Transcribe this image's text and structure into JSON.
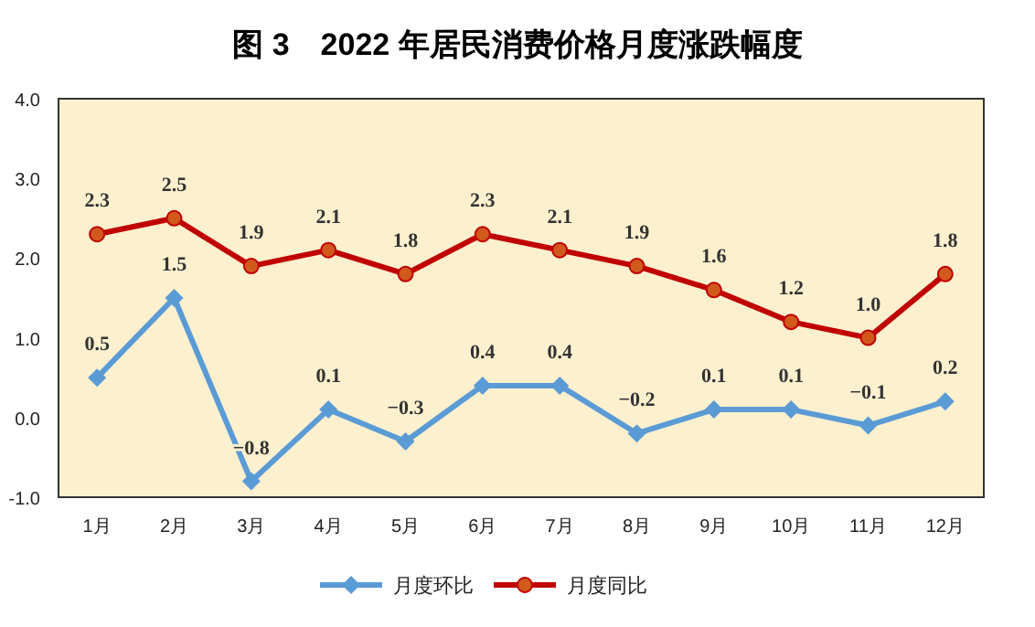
{
  "chart_data": {
    "type": "line",
    "title": "图 3　2022 年居民消费价格月度涨跌幅度",
    "categories": [
      "1月",
      "2月",
      "3月",
      "4月",
      "5月",
      "6月",
      "7月",
      "8月",
      "9月",
      "10月",
      "11月",
      "12月"
    ],
    "series": [
      {
        "name": "月度环比",
        "color": "#5b9bd5",
        "marker": "diamond",
        "values": [
          0.5,
          1.5,
          -0.8,
          0.1,
          -0.3,
          0.4,
          0.4,
          -0.2,
          0.1,
          0.1,
          -0.1,
          0.2
        ],
        "value_labels": [
          "0.5",
          "1.5",
          "−0.8",
          "0.1",
          "−0.3",
          "0.4",
          "0.4",
          "−0.2",
          "0.1",
          "0.1",
          "−0.1",
          "0.2"
        ]
      },
      {
        "name": "月度同比",
        "color": "#c00000",
        "marker": "circle",
        "values": [
          2.3,
          2.5,
          1.9,
          2.1,
          1.8,
          2.3,
          2.1,
          1.9,
          1.6,
          1.2,
          1.0,
          1.8
        ],
        "value_labels": [
          "2.3",
          "2.5",
          "1.9",
          "2.1",
          "1.8",
          "2.3",
          "2.1",
          "1.9",
          "1.6",
          "1.2",
          "1.0",
          "1.8"
        ]
      }
    ],
    "ylim": [
      -1,
      4
    ],
    "yticks": [
      {
        "value": -1,
        "label": "-1.0"
      },
      {
        "value": 0,
        "label": "0.0"
      },
      {
        "value": 1,
        "label": "1.0"
      },
      {
        "value": 2,
        "label": "2.0"
      },
      {
        "value": 3,
        "label": "3.0"
      },
      {
        "value": 4,
        "label": "4.0"
      }
    ],
    "grid": false,
    "legend": "bottom"
  }
}
